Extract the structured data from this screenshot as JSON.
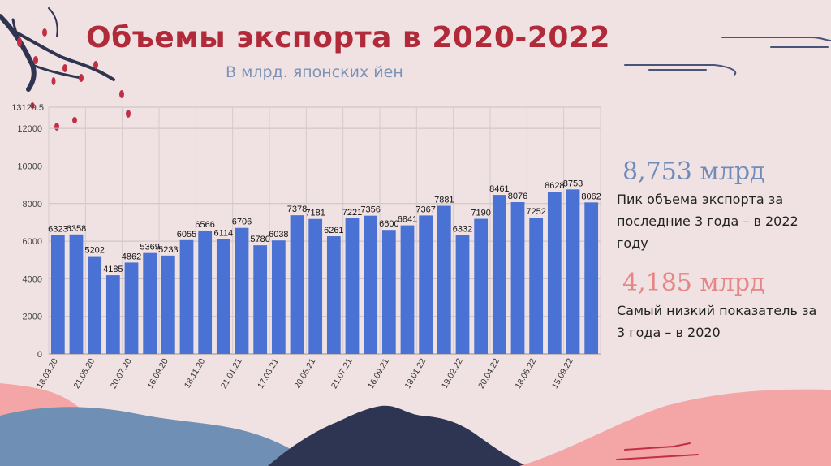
{
  "title": "Объемы экспорта в 2020-2022",
  "subtitle": "В млрд. японских йен",
  "stats": [
    {
      "value": "8,753 млрд",
      "description": "Пик объема экспорта за последние 3 года – в 2022 году",
      "color": "#6f8cb8"
    },
    {
      "value": "4,185 млрд",
      "description": "Самый низкий показатель за 3 года – в 2020",
      "color": "#e68585"
    }
  ],
  "colors": {
    "bar": "#4a72d4",
    "title": "#b02a3a",
    "background": "#f0e2e3"
  },
  "chart_data": {
    "type": "bar",
    "categories": [
      "18.03.20",
      "",
      "21.05.20",
      "",
      "20.07.20",
      "",
      "16.09.20",
      "",
      "18.11.20",
      "",
      "21.01.21",
      "",
      "17.03.21",
      "",
      "20.05.21",
      "",
      "21.07.21",
      "",
      "16.09.21",
      "",
      "18.01.22",
      "",
      "19.02.22",
      "",
      "20.04.22",
      "",
      "18.06.22",
      "",
      "15.09.22",
      ""
    ],
    "values": [
      6323,
      6358,
      5202,
      4185,
      4862,
      5369,
      5233,
      6055,
      6566,
      6114,
      6706,
      5780,
      6038,
      7378,
      7181,
      6261,
      7221,
      7356,
      6600,
      6841,
      7367,
      7881,
      6332,
      7190,
      8461,
      8076,
      7252,
      8628,
      8753,
      8062
    ],
    "ylim": [
      0,
      13129.5
    ],
    "yticks": [
      0,
      2000,
      4000,
      6000,
      8000,
      10000,
      12000
    ],
    "ymax_label": "13129.5",
    "grid": true
  }
}
